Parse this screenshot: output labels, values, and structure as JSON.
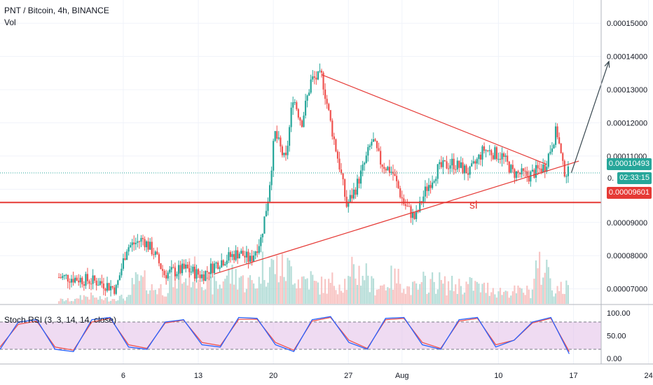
{
  "header": {
    "symbol_line": "PNT / Bitcoin, 4h, BINANCE",
    "volume_label": "Vol"
  },
  "indicator": {
    "label": "Stoch RSI (3, 3, 14, 14, close)",
    "ticks": [
      "100.00",
      "50.00",
      "0.00"
    ],
    "upper_band": 80,
    "lower_band": 20
  },
  "price_tags": {
    "last_price": "0.00010493",
    "countdown": "02:33:15",
    "stop_level": "0.00009601",
    "partial": "0."
  },
  "annotations": {
    "sl_text": "sl"
  },
  "colors": {
    "up": "#26a69a",
    "down": "#ef5350",
    "trendline": "#e53935",
    "arrow": "#37474f",
    "stoch_k": "#2962ff",
    "stoch_d": "#ef5350",
    "band_fill": "#e1bee7",
    "last_price_line": "#26a69a"
  },
  "chart_data": {
    "type": "candlestick",
    "x_ticks": [
      "6",
      "13",
      "20",
      "27",
      "Aug",
      "10",
      "17",
      "24"
    ],
    "y_ticks": [
      "0.00015000",
      "0.00014000",
      "0.00013000",
      "0.00012000",
      "0.00011000",
      "0.00010000",
      "0.00009000",
      "0.00008000",
      "0.00007000"
    ],
    "y_range": [
      6.55e-05,
      0.000157
    ],
    "price_path": [
      {
        "day": 1,
        "price": 7.35e-05
      },
      {
        "day": 4,
        "price": 7.2e-05
      },
      {
        "day": 5.5,
        "price": 7e-05
      },
      {
        "day": 6.5,
        "price": 8.25e-05
      },
      {
        "day": 8,
        "price": 8.5e-05
      },
      {
        "day": 9,
        "price": 8.1e-05
      },
      {
        "day": 10,
        "price": 7.45e-05
      },
      {
        "day": 12,
        "price": 7.6e-05
      },
      {
        "day": 13.5,
        "price": 7.4e-05
      },
      {
        "day": 15,
        "price": 7.8e-05
      },
      {
        "day": 17,
        "price": 8.1e-05
      },
      {
        "day": 18,
        "price": 7.85e-05
      },
      {
        "day": 19,
        "price": 8.5e-05
      },
      {
        "day": 19.7,
        "price": 9.8e-05
      },
      {
        "day": 20.3,
        "price": 0.000117
      },
      {
        "day": 21.3,
        "price": 0.000108
      },
      {
        "day": 22,
        "price": 0.000128
      },
      {
        "day": 22.8,
        "price": 0.00012
      },
      {
        "day": 23.7,
        "price": 0.000133
      },
      {
        "day": 24.7,
        "price": 0.000134
      },
      {
        "day": 25.5,
        "price": 0.00012
      },
      {
        "day": 26.4,
        "price": 0.000106
      },
      {
        "day": 27,
        "price": 9.5e-05
      },
      {
        "day": 27.8,
        "price": 0.0001
      },
      {
        "day": 28.5,
        "price": 0.000106
      },
      {
        "day": 29.4,
        "price": 0.000115
      },
      {
        "day": 30.2,
        "price": 0.000108
      },
      {
        "day": 31.3,
        "price": 0.000105
      },
      {
        "day": 32.3,
        "price": 9.6e-05
      },
      {
        "day": 33.4,
        "price": 9.1e-05
      },
      {
        "day": 34.4,
        "price": 0.0001
      },
      {
        "day": 35.5,
        "price": 0.000106
      },
      {
        "day": 36.8,
        "price": 0.000108
      },
      {
        "day": 38.5,
        "price": 0.000105
      },
      {
        "day": 39.8,
        "price": 0.000112
      },
      {
        "day": 41.5,
        "price": 0.00011
      },
      {
        "day": 42.5,
        "price": 0.000105
      },
      {
        "day": 44,
        "price": 0.000104
      },
      {
        "day": 45.5,
        "price": 0.000107
      },
      {
        "day": 46.6,
        "price": 0.000118
      },
      {
        "day": 47.2,
        "price": 0.000106
      },
      {
        "day": 47.6,
        "price": 0.0001049
      }
    ],
    "volume_level": [
      0.06,
      0.12,
      0.08,
      0.1,
      0.35,
      0.25,
      0.4,
      0.5,
      0.3,
      0.45,
      0.35,
      0.6,
      0.55,
      0.4,
      0.3,
      0.35,
      0.5,
      0.3,
      0.4,
      0.25,
      0.35,
      0.3,
      0.3,
      0.25,
      0.2,
      0.2,
      0.55,
      0.25
    ],
    "overlays": {
      "triangle_upper": [
        {
          "day": 24.5,
          "price": 0.0001345
        },
        {
          "day": 45.5,
          "price": 0.0001075
        }
      ],
      "triangle_lower": [
        {
          "day": 14.5,
          "price": 7.45e-05
        },
        {
          "day": 48.5,
          "price": 0.0001085
        }
      ],
      "support_line": 9.601e-05,
      "last_price_line": 0.00010493,
      "target_arrow": [
        {
          "day": 47.8,
          "price": 0.000105
        },
        {
          "day": 51.3,
          "price": 0.0001385
        }
      ]
    },
    "stoch_k_path": [
      20,
      80,
      85,
      20,
      15,
      85,
      90,
      25,
      20,
      80,
      85,
      30,
      25,
      90,
      88,
      30,
      15,
      85,
      92,
      35,
      20,
      88,
      90,
      30,
      20,
      85,
      90,
      25,
      40,
      80,
      90,
      10
    ],
    "stoch_d_path": [
      25,
      75,
      82,
      25,
      18,
      80,
      88,
      30,
      22,
      78,
      84,
      35,
      28,
      86,
      86,
      35,
      18,
      82,
      90,
      40,
      22,
      85,
      88,
      35,
      22,
      82,
      88,
      30,
      40,
      78,
      88,
      15
    ]
  }
}
